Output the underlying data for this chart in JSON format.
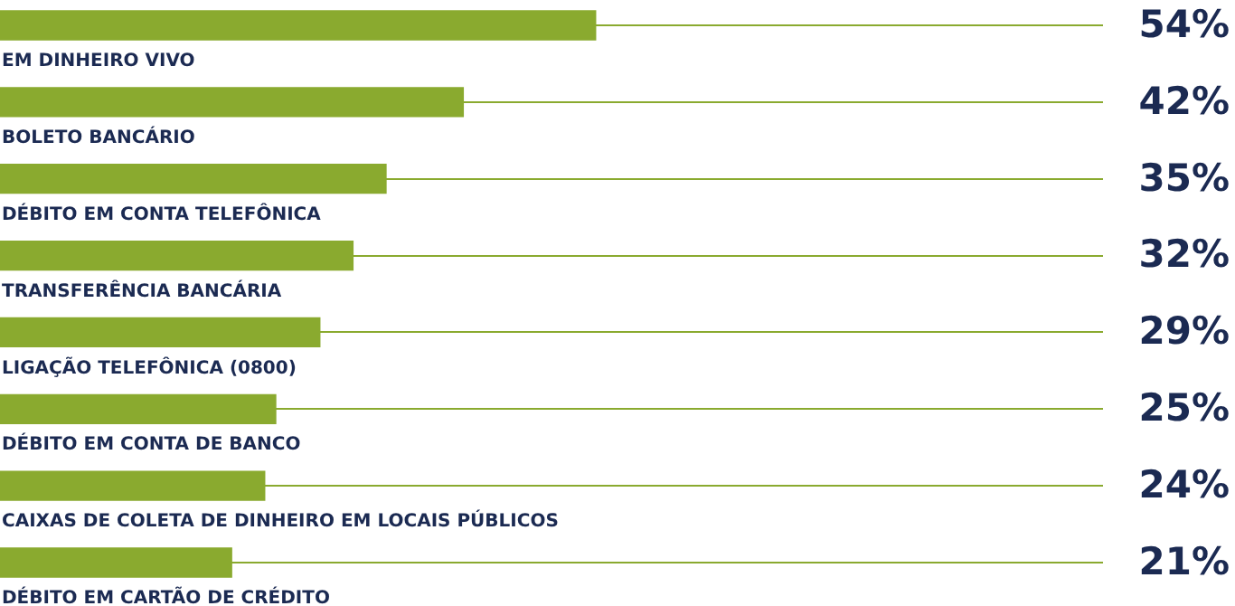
{
  "chart_data": {
    "type": "bar",
    "orientation": "horizontal",
    "categories": [
      "EM DINHEIRO VIVO",
      "BOLETO BANCÁRIO",
      "DÉBITO EM CONTA TELEFÔNICA",
      "TRANSFERÊNCIA BANCÁRIA",
      "LIGAÇÃO TELEFÔNICA (0800)",
      "DÉBITO EM CONTA DE BANCO",
      "CAIXAS DE COLETA DE DINHEIRO EM LOCAIS PÚBLICOS",
      "DÉBITO EM CARTÃO DE CRÉDITO"
    ],
    "values": [
      54,
      42,
      35,
      32,
      29,
      25,
      24,
      21
    ],
    "value_labels": [
      "54%",
      "42%",
      "35%",
      "32%",
      "29%",
      "25%",
      "24%",
      "21%"
    ],
    "color": "#8aaa2f",
    "xlim": [
      0,
      100
    ],
    "grid": "y",
    "tick_labels": false
  }
}
